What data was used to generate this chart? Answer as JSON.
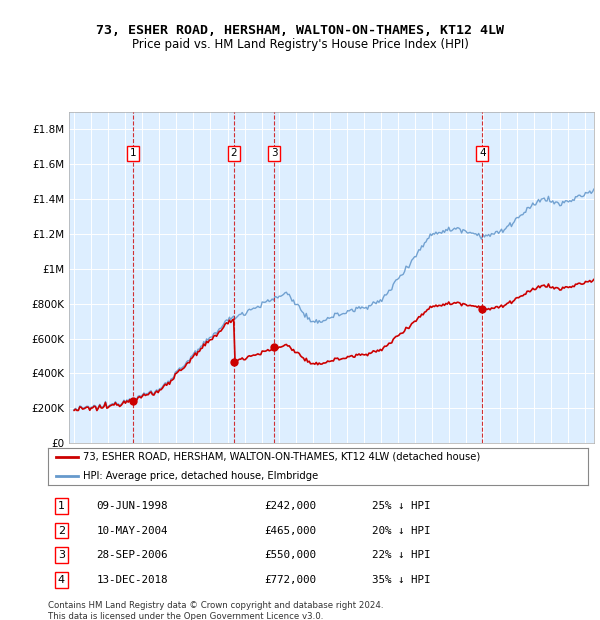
{
  "title": "73, ESHER ROAD, HERSHAM, WALTON-ON-THAMES, KT12 4LW",
  "subtitle": "Price paid vs. HM Land Registry's House Price Index (HPI)",
  "property_label": "73, ESHER ROAD, HERSHAM, WALTON-ON-THAMES, KT12 4LW (detached house)",
  "hpi_label": "HPI: Average price, detached house, Elmbridge",
  "property_color": "#cc0000",
  "hpi_color": "#6699cc",
  "background_color": "#ddeeff",
  "transactions": [
    {
      "num": 1,
      "date_label": "09-JUN-1998",
      "date_x": 1998.44,
      "price": 242000,
      "pct": "25% ↓ HPI"
    },
    {
      "num": 2,
      "date_label": "10-MAY-2004",
      "date_x": 2004.36,
      "price": 465000,
      "pct": "20% ↓ HPI"
    },
    {
      "num": 3,
      "date_label": "28-SEP-2006",
      "date_x": 2006.74,
      "price": 550000,
      "pct": "22% ↓ HPI"
    },
    {
      "num": 4,
      "date_label": "13-DEC-2018",
      "date_x": 2018.95,
      "price": 772000,
      "pct": "35% ↓ HPI"
    }
  ],
  "ylim": [
    0,
    1900000
  ],
  "yticks": [
    0,
    200000,
    400000,
    600000,
    800000,
    1000000,
    1200000,
    1400000,
    1600000,
    1800000
  ],
  "ylabel_map": {
    "0": "£0",
    "200000": "£200K",
    "400000": "£400K",
    "600000": "£600K",
    "800000": "£800K",
    "1000000": "£1M",
    "1200000": "£1.2M",
    "1400000": "£1.4M",
    "1600000": "£1.6M",
    "1800000": "£1.8M"
  },
  "footnote": "Contains HM Land Registry data © Crown copyright and database right 2024.\nThis data is licensed under the Open Government Licence v3.0.",
  "xmin": 1994.7,
  "xmax": 2025.5
}
